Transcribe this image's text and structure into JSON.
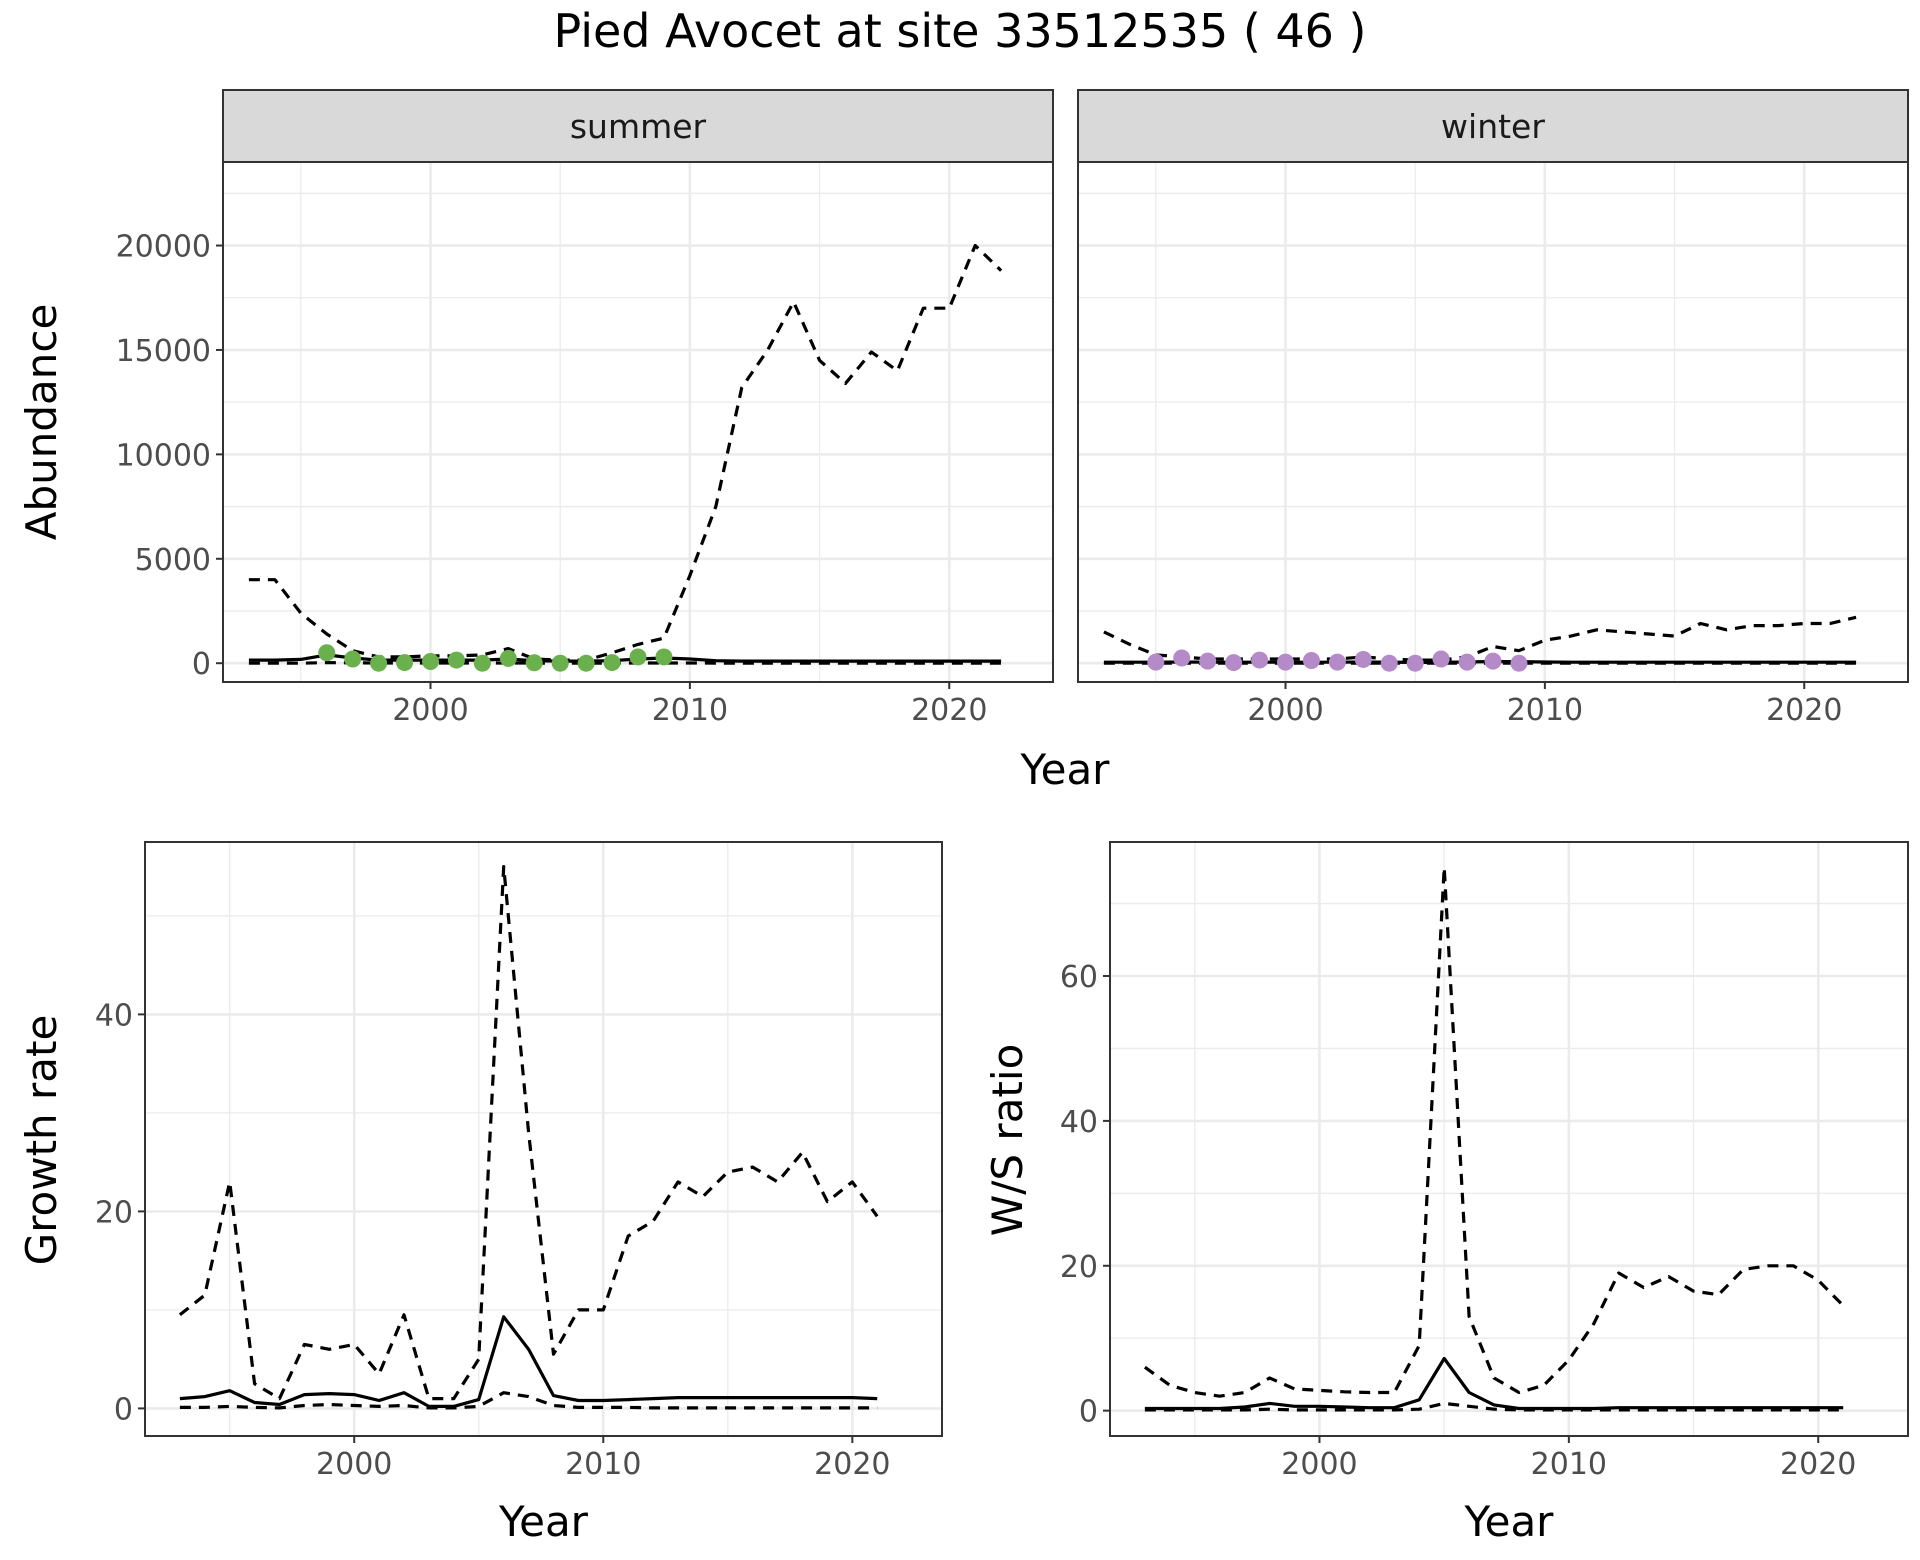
{
  "title": "Pied Avocet at site 33512535 ( 46 )",
  "colors": {
    "summer_points": "#6ab04c",
    "winter_points": "#b48ac9",
    "grid": "#ebebeb",
    "strip_bg": "#d9d9d9",
    "line": "#000000"
  },
  "chart_data": [
    {
      "type": "line",
      "facets": [
        "summer",
        "winter"
      ],
      "xlabel": "Year",
      "ylabel": "Abundance",
      "xlim": [
        1992,
        2024
      ],
      "ylim": [
        -900,
        24000
      ],
      "xticks": [
        2000,
        2010,
        2020
      ],
      "yticks": [
        0,
        5000,
        10000,
        15000,
        20000
      ],
      "panels": [
        {
          "facet": "summer",
          "point_color": "#6ab04c",
          "upper": {
            "x": [
              1993,
              1994,
              1995,
              1996,
              1997,
              1998,
              1999,
              2000,
              2001,
              2002,
              2003,
              2004,
              2005,
              2006,
              2007,
              2008,
              2009,
              2010,
              2011,
              2012,
              2013,
              2014,
              2015,
              2016,
              2017,
              2018,
              2019,
              2020,
              2021,
              2022
            ],
            "y": [
              4000,
              4000,
              2400,
              1400,
              600,
              300,
              300,
              350,
              350,
              400,
              700,
              200,
              150,
              150,
              500,
              900,
              1200,
              4200,
              7500,
              13200,
              15000,
              17300,
              14500,
              13400,
              14900,
              14000,
              17000,
              17000,
              20000,
              18800
            ]
          },
          "mean": {
            "x": [
              1993,
              1994,
              1995,
              1996,
              1997,
              1998,
              1999,
              2000,
              2001,
              2002,
              2003,
              2004,
              2005,
              2006,
              2007,
              2008,
              2009,
              2010,
              2011,
              2012,
              2013,
              2014,
              2015,
              2016,
              2017,
              2018,
              2019,
              2020,
              2021,
              2022
            ],
            "y": [
              150,
              150,
              180,
              400,
              250,
              150,
              150,
              150,
              150,
              150,
              200,
              120,
              100,
              100,
              120,
              200,
              250,
              200,
              120,
              100,
              100,
              100,
              100,
              100,
              100,
              100,
              100,
              100,
              100,
              100
            ]
          },
          "lower": {
            "x": [
              1993,
              1994,
              1995,
              1996,
              1997,
              1998,
              1999,
              2000,
              2001,
              2002,
              2003,
              2004,
              2005,
              2006,
              2007,
              2008,
              2009,
              2010,
              2011,
              2012,
              2013,
              2014,
              2015,
              2016,
              2017,
              2018,
              2019,
              2020,
              2021,
              2022
            ],
            "y": [
              0,
              0,
              0,
              30,
              20,
              10,
              10,
              10,
              10,
              10,
              10,
              5,
              5,
              5,
              5,
              10,
              10,
              10,
              5,
              0,
              0,
              0,
              0,
              0,
              0,
              0,
              0,
              0,
              0,
              0
            ]
          },
          "points": {
            "x": [
              1996,
              1997,
              1998,
              1999,
              2000,
              2001,
              2002,
              2003,
              2004,
              2005,
              2006,
              2007,
              2008,
              2009
            ],
            "y": [
              500,
              200,
              0,
              30,
              80,
              150,
              0,
              230,
              20,
              0,
              0,
              30,
              300,
              300
            ]
          }
        },
        {
          "facet": "winter",
          "point_color": "#b48ac9",
          "upper": {
            "x": [
              1993,
              1994,
              1995,
              1996,
              1997,
              1998,
              1999,
              2000,
              2001,
              2002,
              2003,
              2004,
              2005,
              2006,
              2007,
              2008,
              2009,
              2010,
              2011,
              2012,
              2013,
              2014,
              2015,
              2016,
              2017,
              2018,
              2019,
              2020,
              2021,
              2022
            ],
            "y": [
              1500,
              900,
              400,
              300,
              200,
              200,
              200,
              200,
              200,
              200,
              300,
              200,
              150,
              150,
              300,
              800,
              600,
              1100,
              1300,
              1600,
              1500,
              1400,
              1300,
              1900,
              1600,
              1800,
              1800,
              1900,
              1900,
              2200
            ]
          },
          "mean": {
            "x": [
              1993,
              1994,
              1995,
              1996,
              1997,
              1998,
              1999,
              2000,
              2001,
              2002,
              2003,
              2004,
              2005,
              2006,
              2007,
              2008,
              2009,
              2010,
              2011,
              2012,
              2013,
              2014,
              2015,
              2016,
              2017,
              2018,
              2019,
              2020,
              2021,
              2022
            ],
            "y": [
              50,
              50,
              50,
              60,
              50,
              50,
              50,
              50,
              50,
              50,
              60,
              50,
              40,
              40,
              60,
              80,
              70,
              60,
              50,
              50,
              50,
              50,
              50,
              50,
              50,
              50,
              50,
              50,
              50,
              50
            ]
          },
          "lower": {
            "x": [
              1993,
              1994,
              1995,
              1996,
              1997,
              1998,
              1999,
              2000,
              2001,
              2002,
              2003,
              2004,
              2005,
              2006,
              2007,
              2008,
              2009,
              2010,
              2011,
              2012,
              2013,
              2014,
              2015,
              2016,
              2017,
              2018,
              2019,
              2020,
              2021,
              2022
            ],
            "y": [
              0,
              0,
              0,
              0,
              0,
              0,
              0,
              0,
              0,
              0,
              0,
              0,
              0,
              0,
              0,
              0,
              0,
              0,
              0,
              0,
              0,
              0,
              0,
              0,
              0,
              0,
              0,
              0,
              0,
              0
            ]
          },
          "points": {
            "x": [
              1995,
              1996,
              1997,
              1998,
              1999,
              2000,
              2001,
              2002,
              2003,
              2004,
              2005,
              2006,
              2007,
              2008,
              2009
            ],
            "y": [
              50,
              250,
              100,
              30,
              150,
              50,
              130,
              50,
              180,
              0,
              0,
              200,
              50,
              100,
              0
            ]
          }
        }
      ]
    },
    {
      "type": "line",
      "xlabel": "Year",
      "ylabel": "Growth rate",
      "xlim": [
        1991.6,
        2023.6
      ],
      "ylim": [
        -2.8,
        57.5
      ],
      "xticks": [
        2000,
        2010,
        2020
      ],
      "yticks": [
        0,
        20,
        40
      ],
      "upper": {
        "x": [
          1993,
          1994,
          1995,
          1996,
          1997,
          1998,
          1999,
          2000,
          2001,
          2002,
          2003,
          2004,
          2005,
          2006,
          2007,
          2008,
          2009,
          2010,
          2011,
          2012,
          2013,
          2014,
          2015,
          2016,
          2017,
          2018,
          2019,
          2020,
          2021
        ],
        "y": [
          9.5,
          11.5,
          23,
          2.5,
          1.0,
          6.5,
          6.0,
          6.5,
          3.5,
          9.5,
          1.0,
          1.0,
          5.0,
          55,
          28,
          5.5,
          10,
          10,
          17.5,
          19,
          23,
          21.5,
          24,
          24.5,
          23,
          26,
          21,
          23,
          19.5
        ]
      },
      "mean": {
        "x": [
          1993,
          1994,
          1995,
          1996,
          1997,
          1998,
          1999,
          2000,
          2001,
          2002,
          2003,
          2004,
          2005,
          2006,
          2007,
          2008,
          2009,
          2010,
          2011,
          2012,
          2013,
          2014,
          2015,
          2016,
          2017,
          2018,
          2019,
          2020,
          2021
        ],
        "y": [
          1.0,
          1.2,
          1.8,
          0.6,
          0.4,
          1.4,
          1.5,
          1.4,
          0.8,
          1.6,
          0.2,
          0.2,
          0.9,
          9.3,
          6.0,
          1.3,
          0.8,
          0.8,
          0.9,
          1.0,
          1.1,
          1.1,
          1.1,
          1.1,
          1.1,
          1.1,
          1.1,
          1.1,
          1.0
        ]
      },
      "lower": {
        "x": [
          1993,
          1994,
          1995,
          1996,
          1997,
          1998,
          1999,
          2000,
          2001,
          2002,
          2003,
          2004,
          2005,
          2006,
          2007,
          2008,
          2009,
          2010,
          2011,
          2012,
          2013,
          2014,
          2015,
          2016,
          2017,
          2018,
          2019,
          2020,
          2021
        ],
        "y": [
          0.1,
          0.1,
          0.2,
          0.1,
          0.05,
          0.3,
          0.4,
          0.3,
          0.2,
          0.3,
          0.05,
          0.05,
          0.2,
          1.6,
          1.2,
          0.3,
          0.1,
          0.1,
          0.1,
          0.05,
          0.05,
          0.05,
          0.05,
          0.05,
          0.05,
          0.05,
          0.05,
          0.05,
          0.05
        ]
      }
    },
    {
      "type": "line",
      "xlabel": "Year",
      "ylabel": "W/S ratio",
      "xlim": [
        1991.6,
        2023.6
      ],
      "ylim": [
        -3.5,
        78.5
      ],
      "xticks": [
        2000,
        2010,
        2020
      ],
      "yticks": [
        0,
        20,
        40,
        60
      ],
      "upper": {
        "x": [
          1993,
          1994,
          1995,
          1996,
          1997,
          1998,
          1999,
          2000,
          2001,
          2002,
          2003,
          2004,
          2005,
          2006,
          2007,
          2008,
          2009,
          2010,
          2011,
          2012,
          2013,
          2014,
          2015,
          2016,
          2017,
          2018,
          2019,
          2020,
          2021
        ],
        "y": [
          6.0,
          3.5,
          2.5,
          2.0,
          2.5,
          4.5,
          3.0,
          2.8,
          2.6,
          2.5,
          2.5,
          9.0,
          75,
          13,
          4.5,
          2.5,
          3.5,
          7.0,
          12,
          19,
          17,
          18.5,
          16.5,
          16,
          19.5,
          20,
          20,
          18,
          14.5
        ]
      },
      "mean": {
        "x": [
          1993,
          1994,
          1995,
          1996,
          1997,
          1998,
          1999,
          2000,
          2001,
          2002,
          2003,
          2004,
          2005,
          2006,
          2007,
          2008,
          2009,
          2010,
          2011,
          2012,
          2013,
          2014,
          2015,
          2016,
          2017,
          2018,
          2019,
          2020,
          2021
        ],
        "y": [
          0.3,
          0.3,
          0.3,
          0.3,
          0.5,
          1.0,
          0.6,
          0.6,
          0.5,
          0.4,
          0.4,
          1.5,
          7.2,
          2.5,
          0.8,
          0.3,
          0.3,
          0.3,
          0.3,
          0.4,
          0.4,
          0.4,
          0.4,
          0.4,
          0.4,
          0.4,
          0.4,
          0.4,
          0.4
        ]
      },
      "lower": {
        "x": [
          1993,
          1994,
          1995,
          1996,
          1997,
          1998,
          1999,
          2000,
          2001,
          2002,
          2003,
          2004,
          2005,
          2006,
          2007,
          2008,
          2009,
          2010,
          2011,
          2012,
          2013,
          2014,
          2015,
          2016,
          2017,
          2018,
          2019,
          2020,
          2021
        ],
        "y": [
          0.1,
          0.1,
          0.1,
          0.1,
          0.1,
          0.2,
          0.1,
          0.1,
          0.1,
          0.1,
          0.1,
          0.2,
          1.0,
          0.6,
          0.2,
          0.1,
          0.1,
          0.1,
          0.1,
          0.1,
          0.1,
          0.1,
          0.1,
          0.1,
          0.1,
          0.1,
          0.1,
          0.1,
          0.1
        ]
      }
    }
  ]
}
